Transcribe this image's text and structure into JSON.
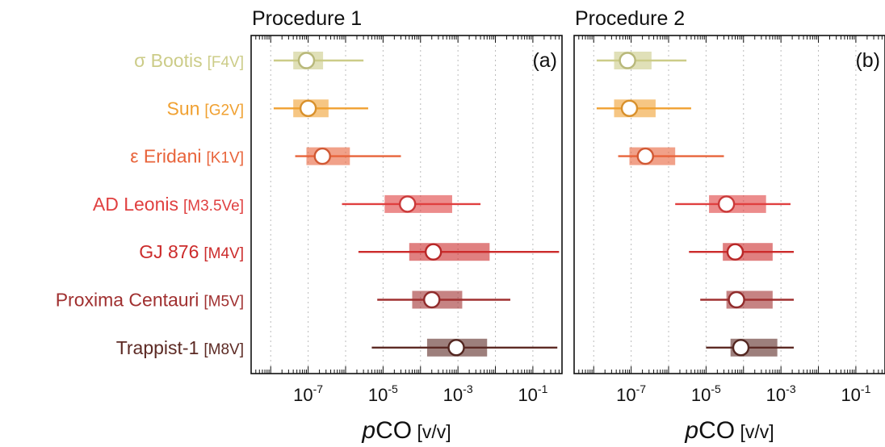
{
  "chart_data": {
    "type": "interval",
    "xlabel_italic": "p",
    "xlabel_main": "CO",
    "xlabel_unit": " [v/v]",
    "x_scale": "log",
    "xlim": [
      3e-09,
      0.6
    ],
    "major_ticks": [
      {
        "mantissa": "10",
        "exp": "-7",
        "value": 1e-07
      },
      {
        "mantissa": "10",
        "exp": "-5",
        "value": 1e-05
      },
      {
        "mantissa": "10",
        "exp": "-3",
        "value": 0.001
      },
      {
        "mantissa": "10",
        "exp": "-1",
        "value": 0.1
      }
    ],
    "grid": "vertical dotted at each decade",
    "stars": [
      {
        "name": "σ Bootis",
        "type": "[F4V]",
        "color": "#cccc88"
      },
      {
        "name": "Sun",
        "type": "[G2V]",
        "color": "#f0a030"
      },
      {
        "name": "ε Eridani",
        "type": "[K1V]",
        "color": "#e8633a"
      },
      {
        "name": "AD Leonis",
        "type": "[M3.5Ve]",
        "color": "#e04040"
      },
      {
        "name": "GJ 876",
        "type": "[M4V]",
        "color": "#cc2b2b"
      },
      {
        "name": "Proxima Centauri",
        "type": "[M5V]",
        "color": "#a03030"
      },
      {
        "name": "Trappist-1",
        "type": "[M8V]",
        "color": "#5c2a24"
      }
    ],
    "panels": [
      {
        "title": "Procedure 1",
        "letter": "(a)",
        "series": [
          {
            "median": 9e-08,
            "low68": 4e-08,
            "high68": 2.5e-07,
            "low95": 1.2e-08,
            "high95": 3e-06
          },
          {
            "median": 1e-07,
            "low68": 4e-08,
            "high68": 3.5e-07,
            "low95": 1.2e-08,
            "high95": 4e-06
          },
          {
            "median": 2.4e-07,
            "low68": 9e-08,
            "high68": 1.3e-06,
            "low95": 4.5e-08,
            "high95": 3e-05
          },
          {
            "median": 4.5e-05,
            "low68": 1.1e-05,
            "high68": 0.0007,
            "low95": 8e-07,
            "high95": 0.004
          },
          {
            "median": 0.00022,
            "low68": 5e-05,
            "high68": 0.007,
            "low95": 2.2e-06,
            "high95": 0.5
          },
          {
            "median": 0.0002,
            "low68": 6e-05,
            "high68": 0.0013,
            "low95": 7e-06,
            "high95": 0.025
          },
          {
            "median": 0.0009,
            "low68": 0.00015,
            "high68": 0.006,
            "low95": 5e-06,
            "high95": 0.45
          }
        ]
      },
      {
        "title": "Procedure 2",
        "letter": "(b)",
        "series": [
          {
            "median": 8e-08,
            "low68": 3.5e-08,
            "high68": 3.5e-07,
            "low95": 1.2e-08,
            "high95": 3e-06
          },
          {
            "median": 9e-08,
            "low68": 3.5e-08,
            "high68": 4.5e-07,
            "low95": 1.2e-08,
            "high95": 4e-06
          },
          {
            "median": 2.4e-07,
            "low68": 9e-08,
            "high68": 1.5e-06,
            "low95": 4.5e-08,
            "high95": 3e-05
          },
          {
            "median": 3.5e-05,
            "low68": 1.2e-05,
            "high68": 0.0004,
            "low95": 1.5e-06,
            "high95": 0.0018
          },
          {
            "median": 6e-05,
            "low68": 2.8e-05,
            "high68": 0.0006,
            "low95": 3.5e-06,
            "high95": 0.0022
          },
          {
            "median": 6.5e-05,
            "low68": 3.5e-05,
            "high68": 0.0006,
            "low95": 7e-06,
            "high95": 0.0022
          },
          {
            "median": 8.5e-05,
            "low68": 4.5e-05,
            "high68": 0.0008,
            "low95": 1e-05,
            "high95": 0.0022
          }
        ]
      }
    ]
  }
}
